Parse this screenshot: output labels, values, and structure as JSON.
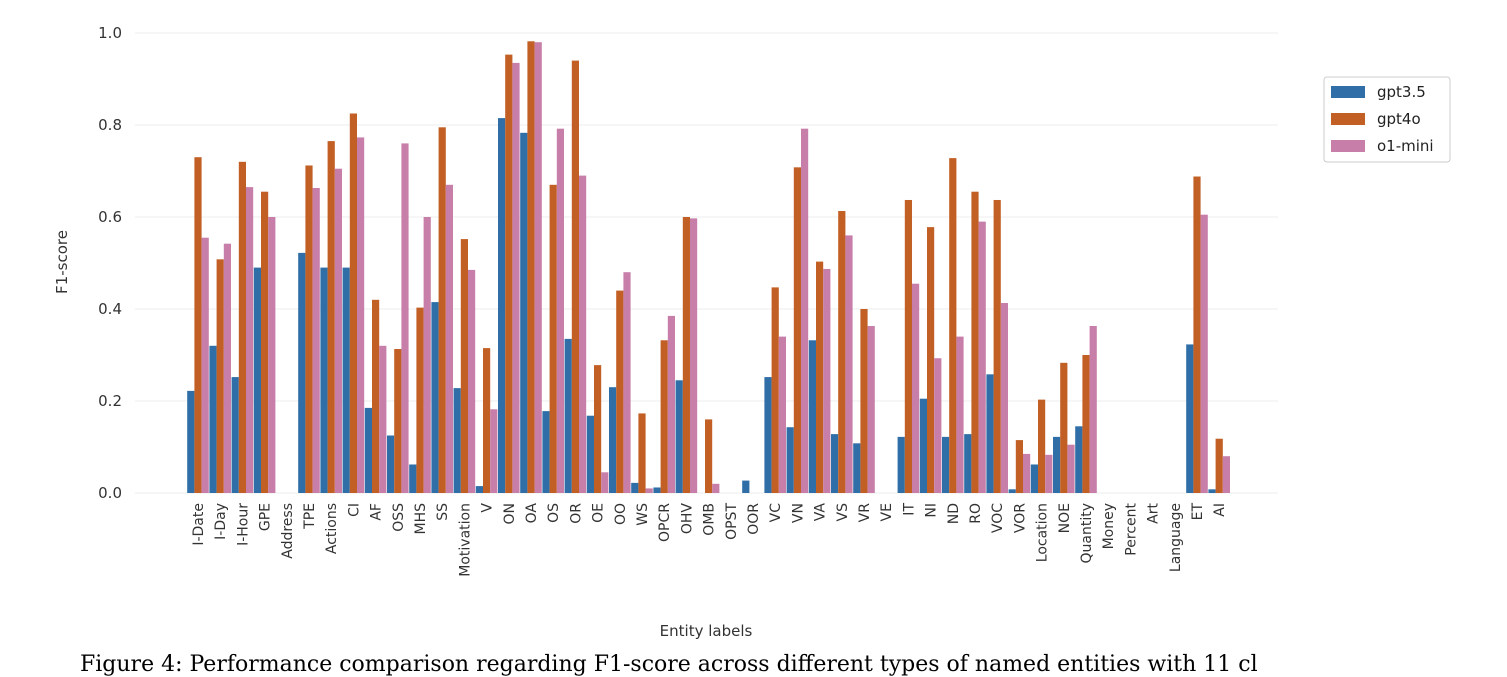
{
  "chart_data": {
    "type": "bar",
    "xlabel": "Entity labels",
    "ylabel": "F1-score",
    "ylim": [
      0,
      1.0
    ],
    "yticks": [
      "0.0",
      "0.2",
      "0.4",
      "0.6",
      "0.8",
      "1.0"
    ],
    "grid": true,
    "legend_position": "top-right",
    "categories": [
      "I-Date",
      "I-Day",
      "I-Hour",
      "GPE",
      "Address",
      "TPE",
      "Actions",
      "CI",
      "AF",
      "OSS",
      "MHS",
      "SS",
      "Motivation",
      "V",
      "ON",
      "OA",
      "OS",
      "OR",
      "OE",
      "OO",
      "WS",
      "OPCR",
      "OHV",
      "OMB",
      "OPST",
      "OOR",
      "VC",
      "VN",
      "VA",
      "VS",
      "VR",
      "VE",
      "IT",
      "NI",
      "ND",
      "RO",
      "VOC",
      "VOR",
      "Location",
      "NOE",
      "Quantity",
      "Money",
      "Percent",
      "Art",
      "Language",
      "ET",
      "AI"
    ],
    "series": [
      {
        "name": "gpt3.5",
        "color": "#2f6ea6",
        "values": [
          0.222,
          0.32,
          0.252,
          0.49,
          0,
          0.522,
          0.49,
          0.49,
          0.185,
          0.125,
          0.062,
          0.415,
          0.228,
          0.015,
          0.815,
          0.783,
          0.178,
          0.335,
          0.168,
          0.23,
          0.022,
          0.012,
          0.245,
          0,
          0,
          0.027,
          0.252,
          0.143,
          0.332,
          0.128,
          0.108,
          0,
          0.122,
          0.205,
          0.122,
          0.128,
          0.258,
          0.008,
          0.062,
          0.122,
          0.145,
          0,
          0,
          0,
          0,
          0.323,
          0.008
        ]
      },
      {
        "name": "gpt4o",
        "color": "#c25f24",
        "values": [
          0.73,
          0.508,
          0.72,
          0.655,
          0,
          0.712,
          0.765,
          0.825,
          0.42,
          0.313,
          0.403,
          0.795,
          0.552,
          0.315,
          0.953,
          0.982,
          0.67,
          0.94,
          0.278,
          0.44,
          0.173,
          0.332,
          0.6,
          0.16,
          0,
          0,
          0.447,
          0.708,
          0.503,
          0.613,
          0.4,
          0,
          0.637,
          0.578,
          0.728,
          0.655,
          0.637,
          0.115,
          0.203,
          0.283,
          0.3,
          0,
          0,
          0,
          0,
          0.688,
          0.118
        ]
      },
      {
        "name": "o1-mini",
        "color": "#c77ea9",
        "values": [
          0.555,
          0.542,
          0.665,
          0.6,
          0,
          0.663,
          0.705,
          0.773,
          0.32,
          0.76,
          0.6,
          0.67,
          0.485,
          0.182,
          0.935,
          0.98,
          0.792,
          0.69,
          0.045,
          0.48,
          0.01,
          0.385,
          0.597,
          0.02,
          0,
          0,
          0.34,
          0.792,
          0.487,
          0.56,
          0.363,
          0,
          0.455,
          0.293,
          0.34,
          0.59,
          0.413,
          0.085,
          0.083,
          0.105,
          0.363,
          0,
          0,
          0,
          0,
          0.605,
          0.08
        ]
      }
    ]
  },
  "caption": "Figure 4: Performance comparison regarding F1-score across different types of named entities with 11 cl"
}
